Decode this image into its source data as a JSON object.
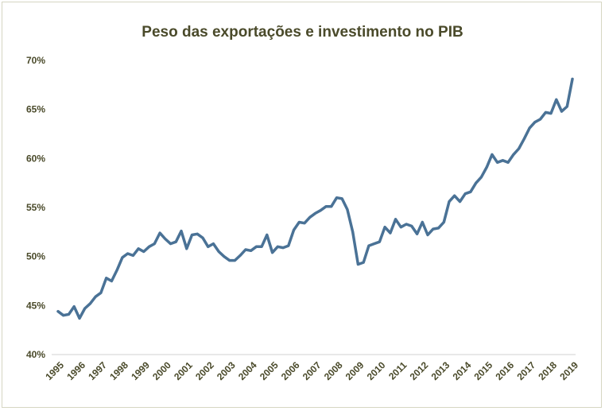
{
  "chart_data": {
    "type": "line",
    "title": "Peso das exportações e investimento no PIB",
    "xlabel": "",
    "ylabel": "",
    "ylim": [
      0.4,
      0.7
    ],
    "y_ticks": [
      "40%",
      "45%",
      "50%",
      "55%",
      "60%",
      "65%",
      "70%"
    ],
    "y_tick_values": [
      0.4,
      0.45,
      0.5,
      0.55,
      0.6,
      0.65,
      0.7
    ],
    "x_ticks": [
      "1995",
      "1996",
      "1997",
      "1998",
      "1999",
      "2000",
      "2001",
      "2002",
      "2003",
      "2004",
      "2005",
      "2006",
      "2007",
      "2008",
      "2009",
      "2010",
      "2011",
      "2012",
      "2013",
      "2014",
      "2015",
      "2016",
      "2017",
      "2018",
      "2019"
    ],
    "grid": "none",
    "series": [
      {
        "color": "#4a7296",
        "x": [
          "1995 Q1",
          "1995 Q2",
          "1995 Q3",
          "1995 Q4",
          "1996 Q1",
          "1996 Q2",
          "1996 Q3",
          "1996 Q4",
          "1997 Q1",
          "1997 Q2",
          "1997 Q3",
          "1997 Q4",
          "1998 Q1",
          "1998 Q2",
          "1998 Q3",
          "1998 Q4",
          "1999 Q1",
          "1999 Q2",
          "1999 Q3",
          "1999 Q4",
          "2000 Q1",
          "2000 Q2",
          "2000 Q3",
          "2000 Q4",
          "2001 Q1",
          "2001 Q2",
          "2001 Q3",
          "2001 Q4",
          "2002 Q1",
          "2002 Q2",
          "2002 Q3",
          "2002 Q4",
          "2003 Q1",
          "2003 Q2",
          "2003 Q3",
          "2003 Q4",
          "2004 Q1",
          "2004 Q2",
          "2004 Q3",
          "2004 Q4",
          "2005 Q1",
          "2005 Q2",
          "2005 Q3",
          "2005 Q4",
          "2006 Q1",
          "2006 Q2",
          "2006 Q3",
          "2006 Q4",
          "2007 Q1",
          "2007 Q2",
          "2007 Q3",
          "2007 Q4",
          "2008 Q1",
          "2008 Q2",
          "2008 Q3",
          "2008 Q4",
          "2009 Q1",
          "2009 Q2",
          "2009 Q3",
          "2009 Q4",
          "2010 Q1",
          "2010 Q2",
          "2010 Q3",
          "2010 Q4",
          "2011 Q1",
          "2011 Q2",
          "2011 Q3",
          "2011 Q4",
          "2012 Q1",
          "2012 Q2",
          "2012 Q3",
          "2012 Q4",
          "2013 Q1",
          "2013 Q2",
          "2013 Q3",
          "2013 Q4",
          "2014 Q1",
          "2014 Q2",
          "2014 Q3",
          "2014 Q4",
          "2015 Q1",
          "2015 Q2",
          "2015 Q3",
          "2015 Q4",
          "2016 Q1",
          "2016 Q2",
          "2016 Q3",
          "2016 Q4",
          "2017 Q1",
          "2017 Q2",
          "2017 Q3",
          "2017 Q4",
          "2018 Q1",
          "2018 Q2",
          "2018 Q3",
          "2018 Q4",
          "2019 Q1"
        ],
        "values": [
          0.444,
          0.44,
          0.441,
          0.449,
          0.437,
          0.447,
          0.452,
          0.459,
          0.463,
          0.478,
          0.475,
          0.486,
          0.499,
          0.503,
          0.501,
          0.508,
          0.505,
          0.51,
          0.513,
          0.524,
          0.518,
          0.513,
          0.515,
          0.526,
          0.508,
          0.522,
          0.523,
          0.519,
          0.51,
          0.513,
          0.505,
          0.5,
          0.496,
          0.496,
          0.501,
          0.507,
          0.506,
          0.51,
          0.51,
          0.522,
          0.504,
          0.51,
          0.509,
          0.511,
          0.527,
          0.535,
          0.534,
          0.54,
          0.544,
          0.547,
          0.551,
          0.551,
          0.56,
          0.559,
          0.548,
          0.525,
          0.492,
          0.494,
          0.511,
          0.513,
          0.515,
          0.53,
          0.524,
          0.538,
          0.53,
          0.533,
          0.531,
          0.523,
          0.535,
          0.522,
          0.528,
          0.529,
          0.535,
          0.556,
          0.562,
          0.556,
          0.564,
          0.566,
          0.575,
          0.581,
          0.591,
          0.604,
          0.596,
          0.598,
          0.596,
          0.604,
          0.61,
          0.62,
          0.631,
          0.637,
          0.64,
          0.647,
          0.646,
          0.66,
          0.648,
          0.653,
          0.681
        ]
      }
    ]
  }
}
